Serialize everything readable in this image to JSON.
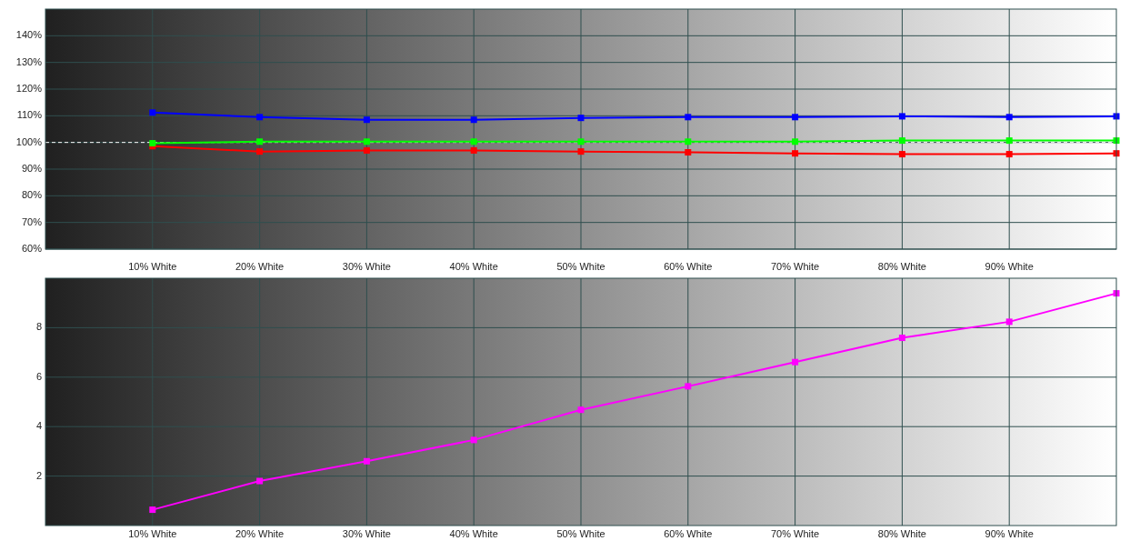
{
  "chart_data": [
    {
      "type": "line",
      "x": [
        10,
        20,
        30,
        40,
        50,
        60,
        70,
        80,
        90,
        100
      ],
      "series": [
        {
          "color": "#0000ff",
          "values": [
            111.2,
            109.5,
            108.5,
            108.5,
            109.2,
            109.5,
            109.5,
            109.8,
            109.5,
            109.8
          ]
        },
        {
          "color": "#00ff00",
          "values": [
            99.7,
            100.3,
            100.3,
            100.3,
            100.3,
            100.3,
            100.3,
            100.7,
            100.7,
            100.7
          ]
        },
        {
          "color": "#ff0000",
          "values": [
            98.6,
            96.6,
            97,
            97,
            96.6,
            96.3,
            95.9,
            95.6,
            95.6,
            95.9
          ]
        }
      ],
      "xlim": [
        0,
        100
      ],
      "xticks": [
        {
          "value": 10,
          "label": "10% White"
        },
        {
          "value": 20,
          "label": "20% White"
        },
        {
          "value": 30,
          "label": "30% White"
        },
        {
          "value": 40,
          "label": "40% White"
        },
        {
          "value": 50,
          "label": "50% White"
        },
        {
          "value": 60,
          "label": "60% White"
        },
        {
          "value": 70,
          "label": "70% White"
        },
        {
          "value": 80,
          "label": "80% White"
        },
        {
          "value": 90,
          "label": "90% White"
        }
      ],
      "ylim": [
        60,
        150
      ],
      "yticks": [
        {
          "value": 60,
          "label": "60%"
        },
        {
          "value": 70,
          "label": "70%"
        },
        {
          "value": 80,
          "label": "80%"
        },
        {
          "value": 90,
          "label": "90%"
        },
        {
          "value": 100,
          "label": "100%"
        },
        {
          "value": 110,
          "label": "110%"
        },
        {
          "value": 120,
          "label": "120%"
        },
        {
          "value": 130,
          "label": "130%"
        },
        {
          "value": 140,
          "label": "140%"
        }
      ],
      "ref_lines": [
        {
          "axis": "y",
          "value": 100,
          "color": "#ffffff",
          "line_style": "dashed"
        }
      ],
      "grid": true,
      "marker": "square"
    },
    {
      "type": "line",
      "x": [
        10,
        20,
        30,
        40,
        50,
        60,
        70,
        80,
        90,
        100
      ],
      "series": [
        {
          "color": "#ff00ff",
          "values": [
            0.64,
            1.8,
            2.6,
            3.46,
            4.68,
            5.63,
            6.61,
            7.59,
            8.24,
            9.39
          ]
        }
      ],
      "xlim": [
        0,
        100
      ],
      "xticks": [
        {
          "value": 10,
          "label": "10% White"
        },
        {
          "value": 20,
          "label": "20% White"
        },
        {
          "value": 30,
          "label": "30% White"
        },
        {
          "value": 40,
          "label": "40% White"
        },
        {
          "value": 50,
          "label": "50% White"
        },
        {
          "value": 60,
          "label": "60% White"
        },
        {
          "value": 70,
          "label": "70% White"
        },
        {
          "value": 80,
          "label": "80% White"
        },
        {
          "value": 90,
          "label": "90% White"
        }
      ],
      "ylim": [
        0,
        10
      ],
      "yticks": [
        2,
        4,
        6,
        8
      ],
      "grid": true,
      "marker": "square"
    }
  ]
}
